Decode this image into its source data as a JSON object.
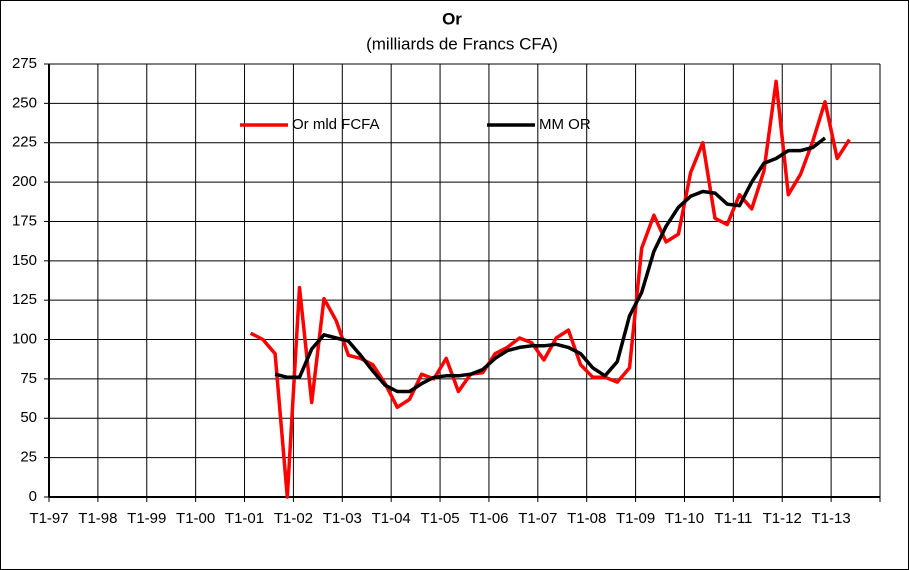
{
  "chart_data": {
    "type": "line",
    "title": "Or",
    "subtitle": "(milliards de Francs CFA)",
    "categories": [
      "T1-97",
      null,
      null,
      null,
      "T1-98",
      null,
      null,
      null,
      "T1-99",
      null,
      null,
      null,
      "T1-00",
      null,
      null,
      null,
      "T1-01",
      null,
      null,
      null,
      "T1-02",
      null,
      null,
      null,
      "T1-03",
      null,
      null,
      null,
      "T1-04",
      null,
      null,
      null,
      "T1-05",
      null,
      null,
      null,
      "T1-06",
      null,
      null,
      null,
      "T1-07",
      null,
      null,
      null,
      "T1-08",
      null,
      null,
      null,
      "T1-09",
      null,
      null,
      null,
      "T1-10",
      null,
      null,
      null,
      "T1-11",
      null,
      null,
      null,
      "T1-12",
      null,
      null,
      null,
      "T1-13",
      null,
      null,
      null
    ],
    "series": [
      {
        "name": "Or mld FCFA",
        "color": "#ff0000",
        "values": [
          null,
          null,
          null,
          null,
          null,
          null,
          null,
          null,
          null,
          null,
          null,
          null,
          null,
          null,
          null,
          null,
          104,
          100,
          91,
          0,
          133,
          60,
          126,
          112,
          90,
          88,
          84,
          72,
          57,
          62,
          78,
          75,
          88,
          67,
          78,
          79,
          91,
          95,
          101,
          98,
          87,
          101,
          106,
          84,
          76,
          76,
          73,
          82,
          158,
          179,
          162,
          167,
          206,
          225,
          177,
          173,
          192,
          183,
          207,
          264,
          192,
          205,
          226,
          251,
          215,
          227,
          null,
          null
        ]
      },
      {
        "name": "MM OR",
        "color": "#000000",
        "values": [
          null,
          null,
          null,
          null,
          null,
          null,
          null,
          null,
          null,
          null,
          null,
          null,
          null,
          null,
          null,
          null,
          null,
          null,
          78,
          76,
          76,
          94,
          103,
          101,
          99,
          90,
          80,
          71,
          67,
          67,
          72,
          76,
          77,
          77,
          78,
          81,
          88,
          93,
          95,
          96,
          96,
          97,
          95,
          91,
          82,
          77,
          86,
          115,
          130,
          156,
          172,
          184,
          191,
          194,
          193,
          186,
          185,
          200,
          212,
          215,
          220,
          220,
          222,
          228,
          null,
          null,
          null,
          null
        ]
      }
    ],
    "ylim": [
      0,
      275
    ],
    "yticks": [
      0,
      25,
      50,
      75,
      100,
      125,
      150,
      175,
      200,
      225,
      250,
      275
    ],
    "grid": true
  }
}
